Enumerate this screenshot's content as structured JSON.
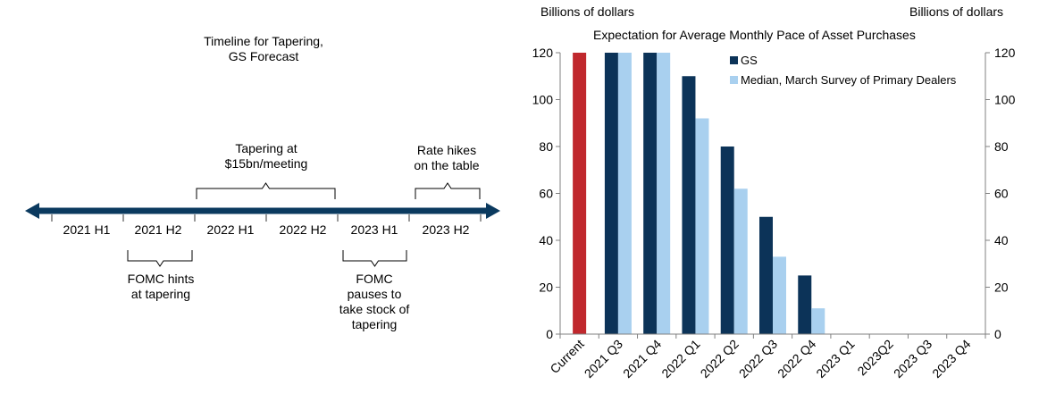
{
  "timeline": {
    "title_line1": "Timeline for Tapering,",
    "title_line2": "GS Forecast",
    "periods": [
      "2021 H1",
      "2021 H2",
      "2022 H1",
      "2022 H2",
      "2023 H1",
      "2023 H2"
    ],
    "above": [
      {
        "line1": "Tapering at",
        "line2": "$15bn/meeting"
      },
      {
        "line1": "Rate hikes",
        "line2": "on the table"
      }
    ],
    "below": [
      {
        "lines": [
          "FOMC hints",
          "at tapering"
        ]
      },
      {
        "lines": [
          "FOMC",
          "pauses to",
          "take stock of",
          "tapering"
        ]
      }
    ],
    "arrow_color": "#0b3a5f"
  },
  "chart_data": {
    "type": "bar",
    "title": "Expectation for Average Monthly Pace of Asset Purchases",
    "left_unit_label": "Billions of dollars",
    "right_unit_label": "Billions of dollars",
    "ylim": [
      0,
      120
    ],
    "yticks": [
      0,
      20,
      40,
      60,
      80,
      100,
      120
    ],
    "categories": [
      "Current",
      "2021 Q3",
      "2021 Q4",
      "2022 Q1",
      "2022 Q2",
      "2022 Q3",
      "2022 Q4",
      "2023 Q1",
      "2023Q2",
      "2023 Q3",
      "2023 Q4"
    ],
    "current_value": 120,
    "current_color": "#c0282d",
    "series": [
      {
        "name": "GS",
        "color": "#0c3358",
        "values": [
          null,
          120,
          120,
          110,
          80,
          50,
          25,
          0,
          0,
          0,
          0
        ]
      },
      {
        "name": "Median, March Survey of Primary Dealers",
        "color": "#a9d0ef",
        "values": [
          null,
          120,
          120,
          92,
          62,
          33,
          11,
          0,
          0,
          0,
          0
        ]
      }
    ],
    "legend_position": "top-right",
    "grid": false
  }
}
